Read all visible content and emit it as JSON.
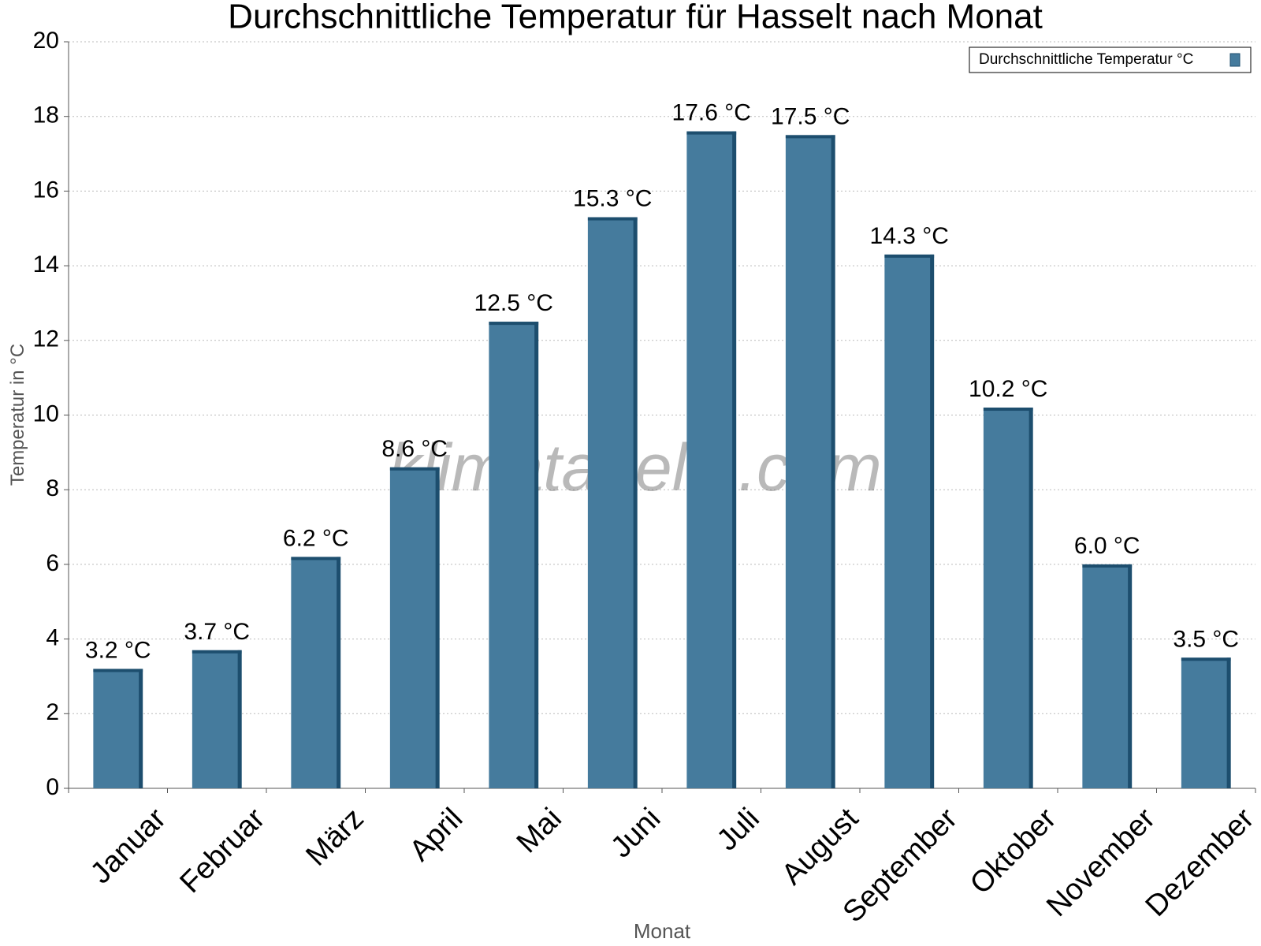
{
  "chart_data": {
    "type": "bar",
    "title": "Durchschnittliche Temperatur für Hasselt nach Monat",
    "x_label": "Monat",
    "y_label": "Temperatur in °C",
    "watermark": "klimatabelle.com",
    "categories": [
      "Januar",
      "Februar",
      "März",
      "April",
      "Mai",
      "Juni",
      "Juli",
      "August",
      "September",
      "Oktober",
      "November",
      "Dezember"
    ],
    "series": [
      {
        "name": "Durchschnittliche Temperatur °C",
        "color": "#457b9d",
        "values": [
          3.2,
          3.7,
          6.2,
          8.6,
          12.5,
          15.3,
          17.6,
          17.5,
          14.3,
          10.2,
          6.0,
          3.5
        ],
        "value_labels": [
          "3.2 °C",
          "3.7 °C",
          "6.2 °C",
          "8.6 °C",
          "12.5 °C",
          "15.3 °C",
          "17.6 °C",
          "17.5 °C",
          "14.3 °C",
          "10.2 °C",
          "6.0 °C",
          "3.5 °C"
        ]
      }
    ],
    "ylim": [
      0,
      20
    ],
    "yticks": [
      0,
      2,
      4,
      6,
      8,
      10,
      12,
      14,
      16,
      18,
      20
    ],
    "grid": true,
    "legend": "top-right"
  }
}
